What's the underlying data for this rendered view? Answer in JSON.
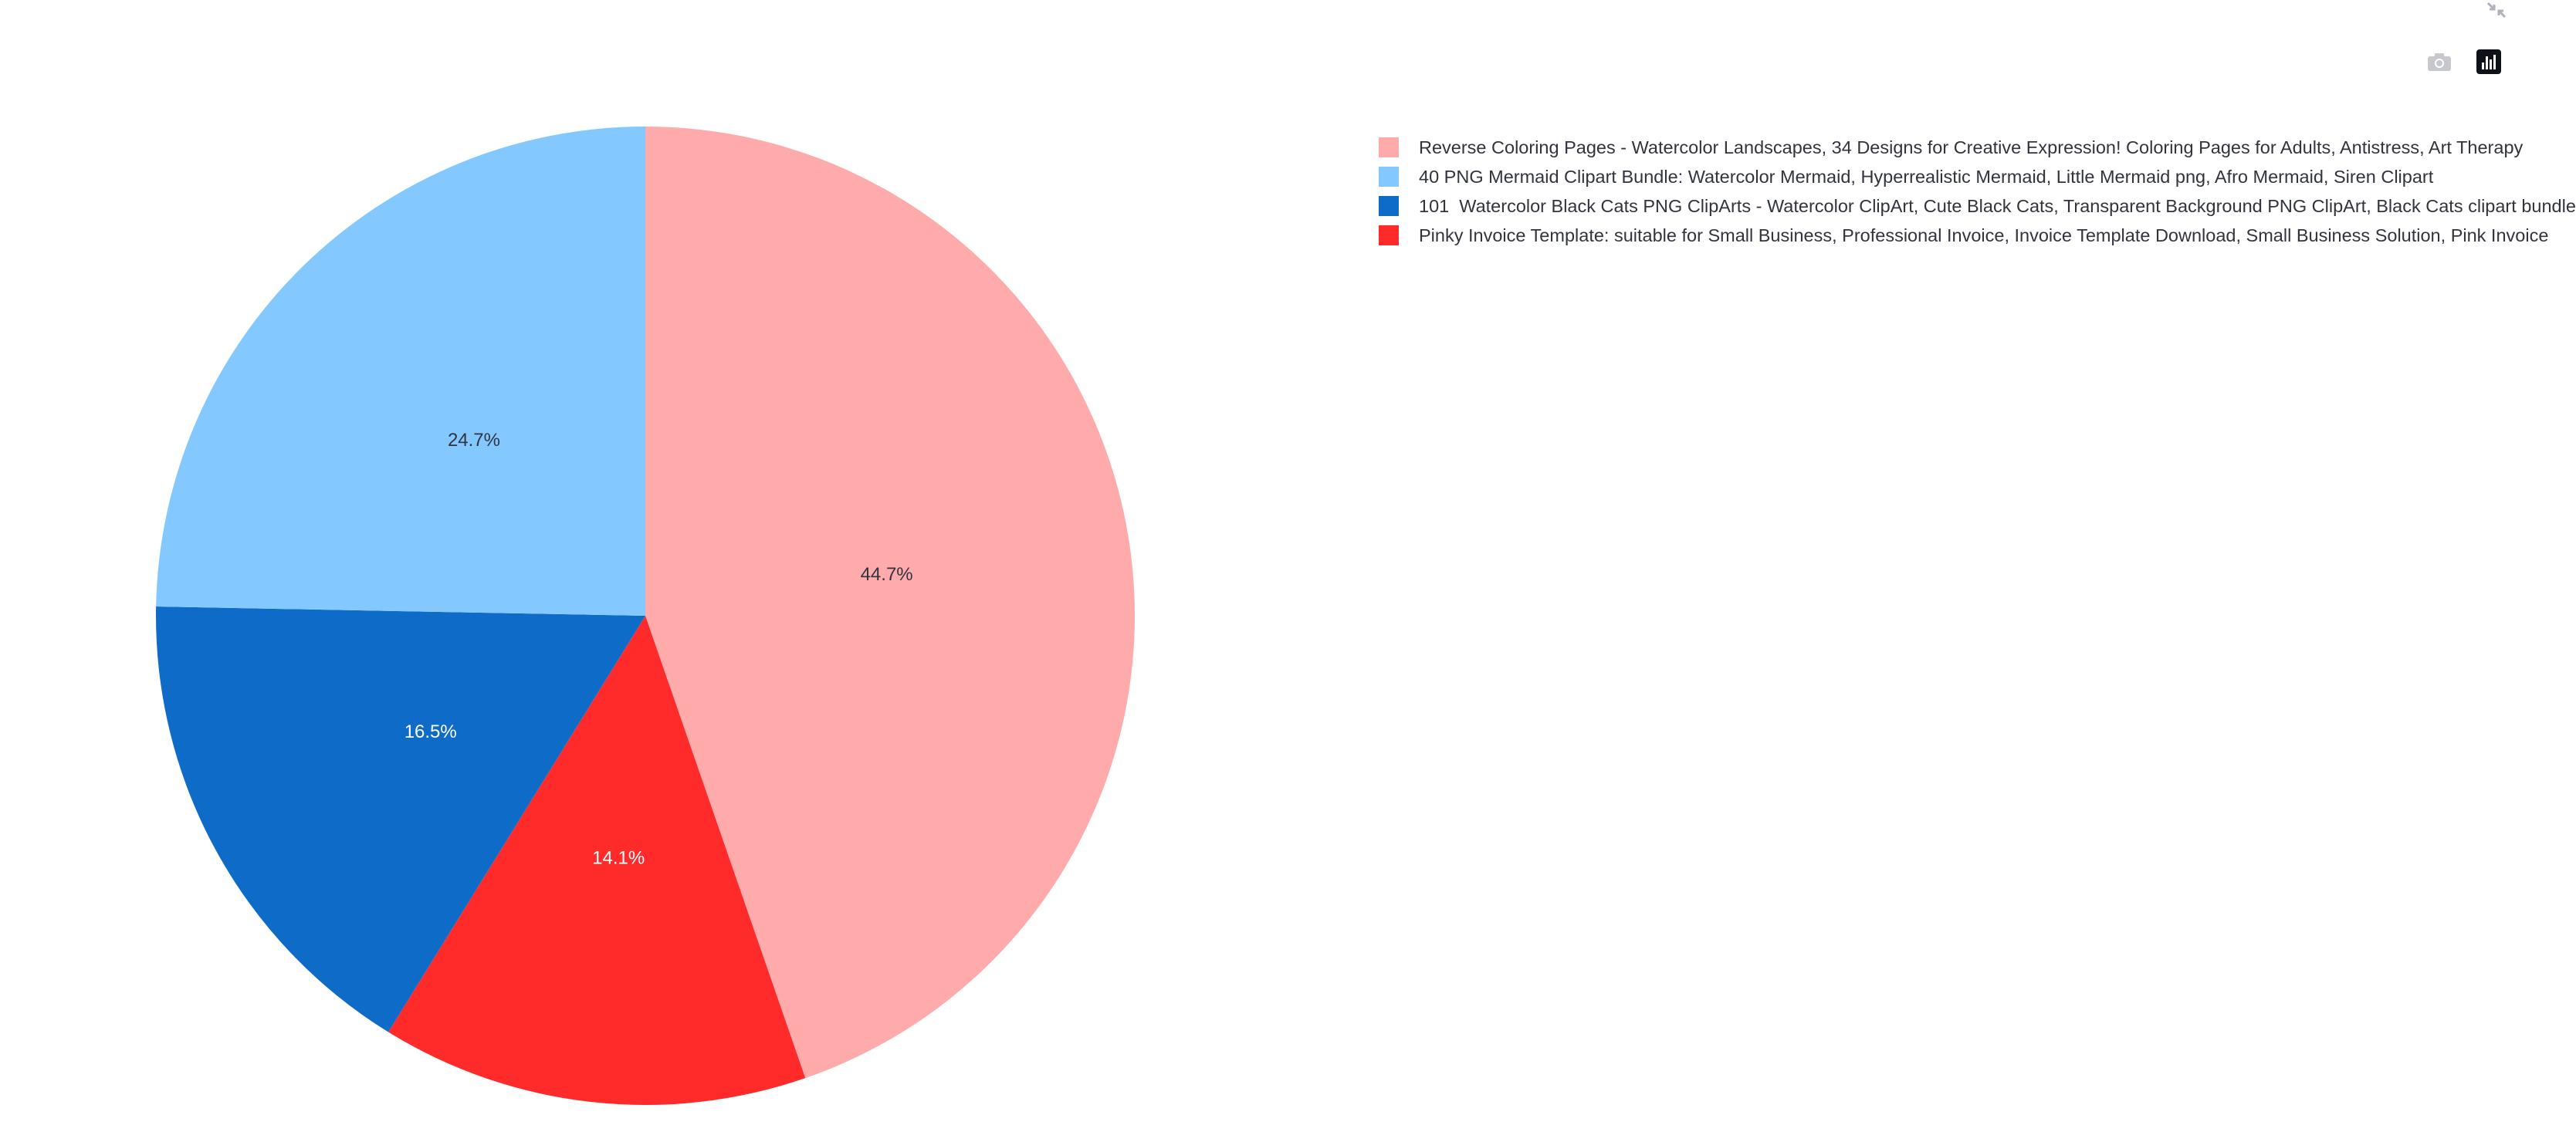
{
  "chart_data": {
    "type": "pie",
    "title": "",
    "slices": [
      {
        "label": "Reverse Coloring Pages - Watercolor Landscapes, 34 Designs for Creative Expression! Coloring Pages for Adults, Antistress, Art Therapy",
        "value": 44.7,
        "display": "44.7%",
        "color": "#ffabab",
        "label_color": "#31333f"
      },
      {
        "label": "Pinky Invoice Template: suitable for Small Business, Professional Invoice, Invoice Template Download, Small Business Solution, Pink Invoice",
        "value": 14.1,
        "display": "14.1%",
        "color": "#ff2b2b",
        "label_color": "#ffffff"
      },
      {
        "label": "101  Watercolor Black Cats PNG ClipArts - Watercolor ClipArt, Cute Black Cats, Transparent Background PNG ClipArt, Black Cats clipart bundle",
        "value": 16.5,
        "display": "16.5%",
        "color": "#0f6bc8",
        "label_color": "#ffffff"
      },
      {
        "label": "40 PNG Mermaid Clipart Bundle: Watercolor Mermaid, Hyperrealistic Mermaid, Little Mermaid png, Afro Mermaid, Siren Clipart",
        "value": 24.7,
        "display": "24.7%",
        "color": "#83c9ff",
        "label_color": "#31333f"
      }
    ],
    "legend": [
      {
        "label": "Reverse Coloring Pages - Watercolor Landscapes, 34 Designs for Creative Expression! Coloring Pages for Adults, Antistress, Art Therapy",
        "color": "#ffabab"
      },
      {
        "label": "40 PNG Mermaid Clipart Bundle: Watercolor Mermaid, Hyperrealistic Mermaid, Little Mermaid png, Afro Mermaid, Siren Clipart",
        "color": "#83c9ff"
      },
      {
        "label": "101  Watercolor Black Cats PNG ClipArts - Watercolor ClipArt, Cute Black Cats, Transparent Background PNG ClipArt, Black Cats clipart bundle",
        "color": "#0f6bc8"
      },
      {
        "label": "Pinky Invoice Template: suitable for Small Business, Professional Invoice, Invoice Template Download, Small Business Solution, Pink Invoice",
        "color": "#ff2b2b"
      }
    ],
    "legend_position": "top-right",
    "direction": "clockwise",
    "start_angle": "12 o'clock"
  },
  "toolbar": {
    "icons": [
      "camera-icon",
      "bar-chart-icon",
      "fullscreen-icon"
    ]
  }
}
